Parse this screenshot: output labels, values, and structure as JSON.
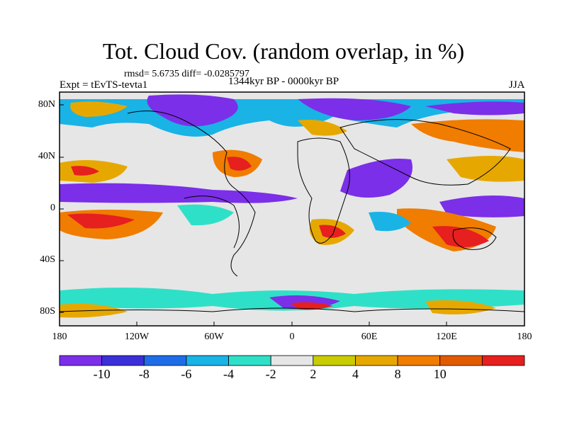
{
  "figure": {
    "title": "Tot. Cloud Cov. (random overlap, in %)",
    "stats": "rmsd= 5.6735 diff= -0.0285797",
    "period": "1344kyr BP - 0000kyr BP",
    "experiment": "Expt = tEvTS-tevta1",
    "season": "JJA"
  },
  "axes": {
    "lat_labels": [
      "80N",
      "40N",
      "0",
      "40S",
      "80S"
    ],
    "lon_labels": [
      "180",
      "120W",
      "60W",
      "0",
      "60E",
      "120E",
      "180"
    ]
  },
  "colorbar": {
    "labels": [
      "-10",
      "-8",
      "-6",
      "-4",
      "-2",
      "2",
      "4",
      "8",
      "10"
    ],
    "colors": [
      "#7b2fe8",
      "#3b2fd8",
      "#1f6ce8",
      "#19b3e6",
      "#2fe0c8",
      "#e6e6e6",
      "#c8cc00",
      "#e6a800",
      "#f07c00",
      "#e25a00",
      "#e61f1f"
    ]
  }
}
